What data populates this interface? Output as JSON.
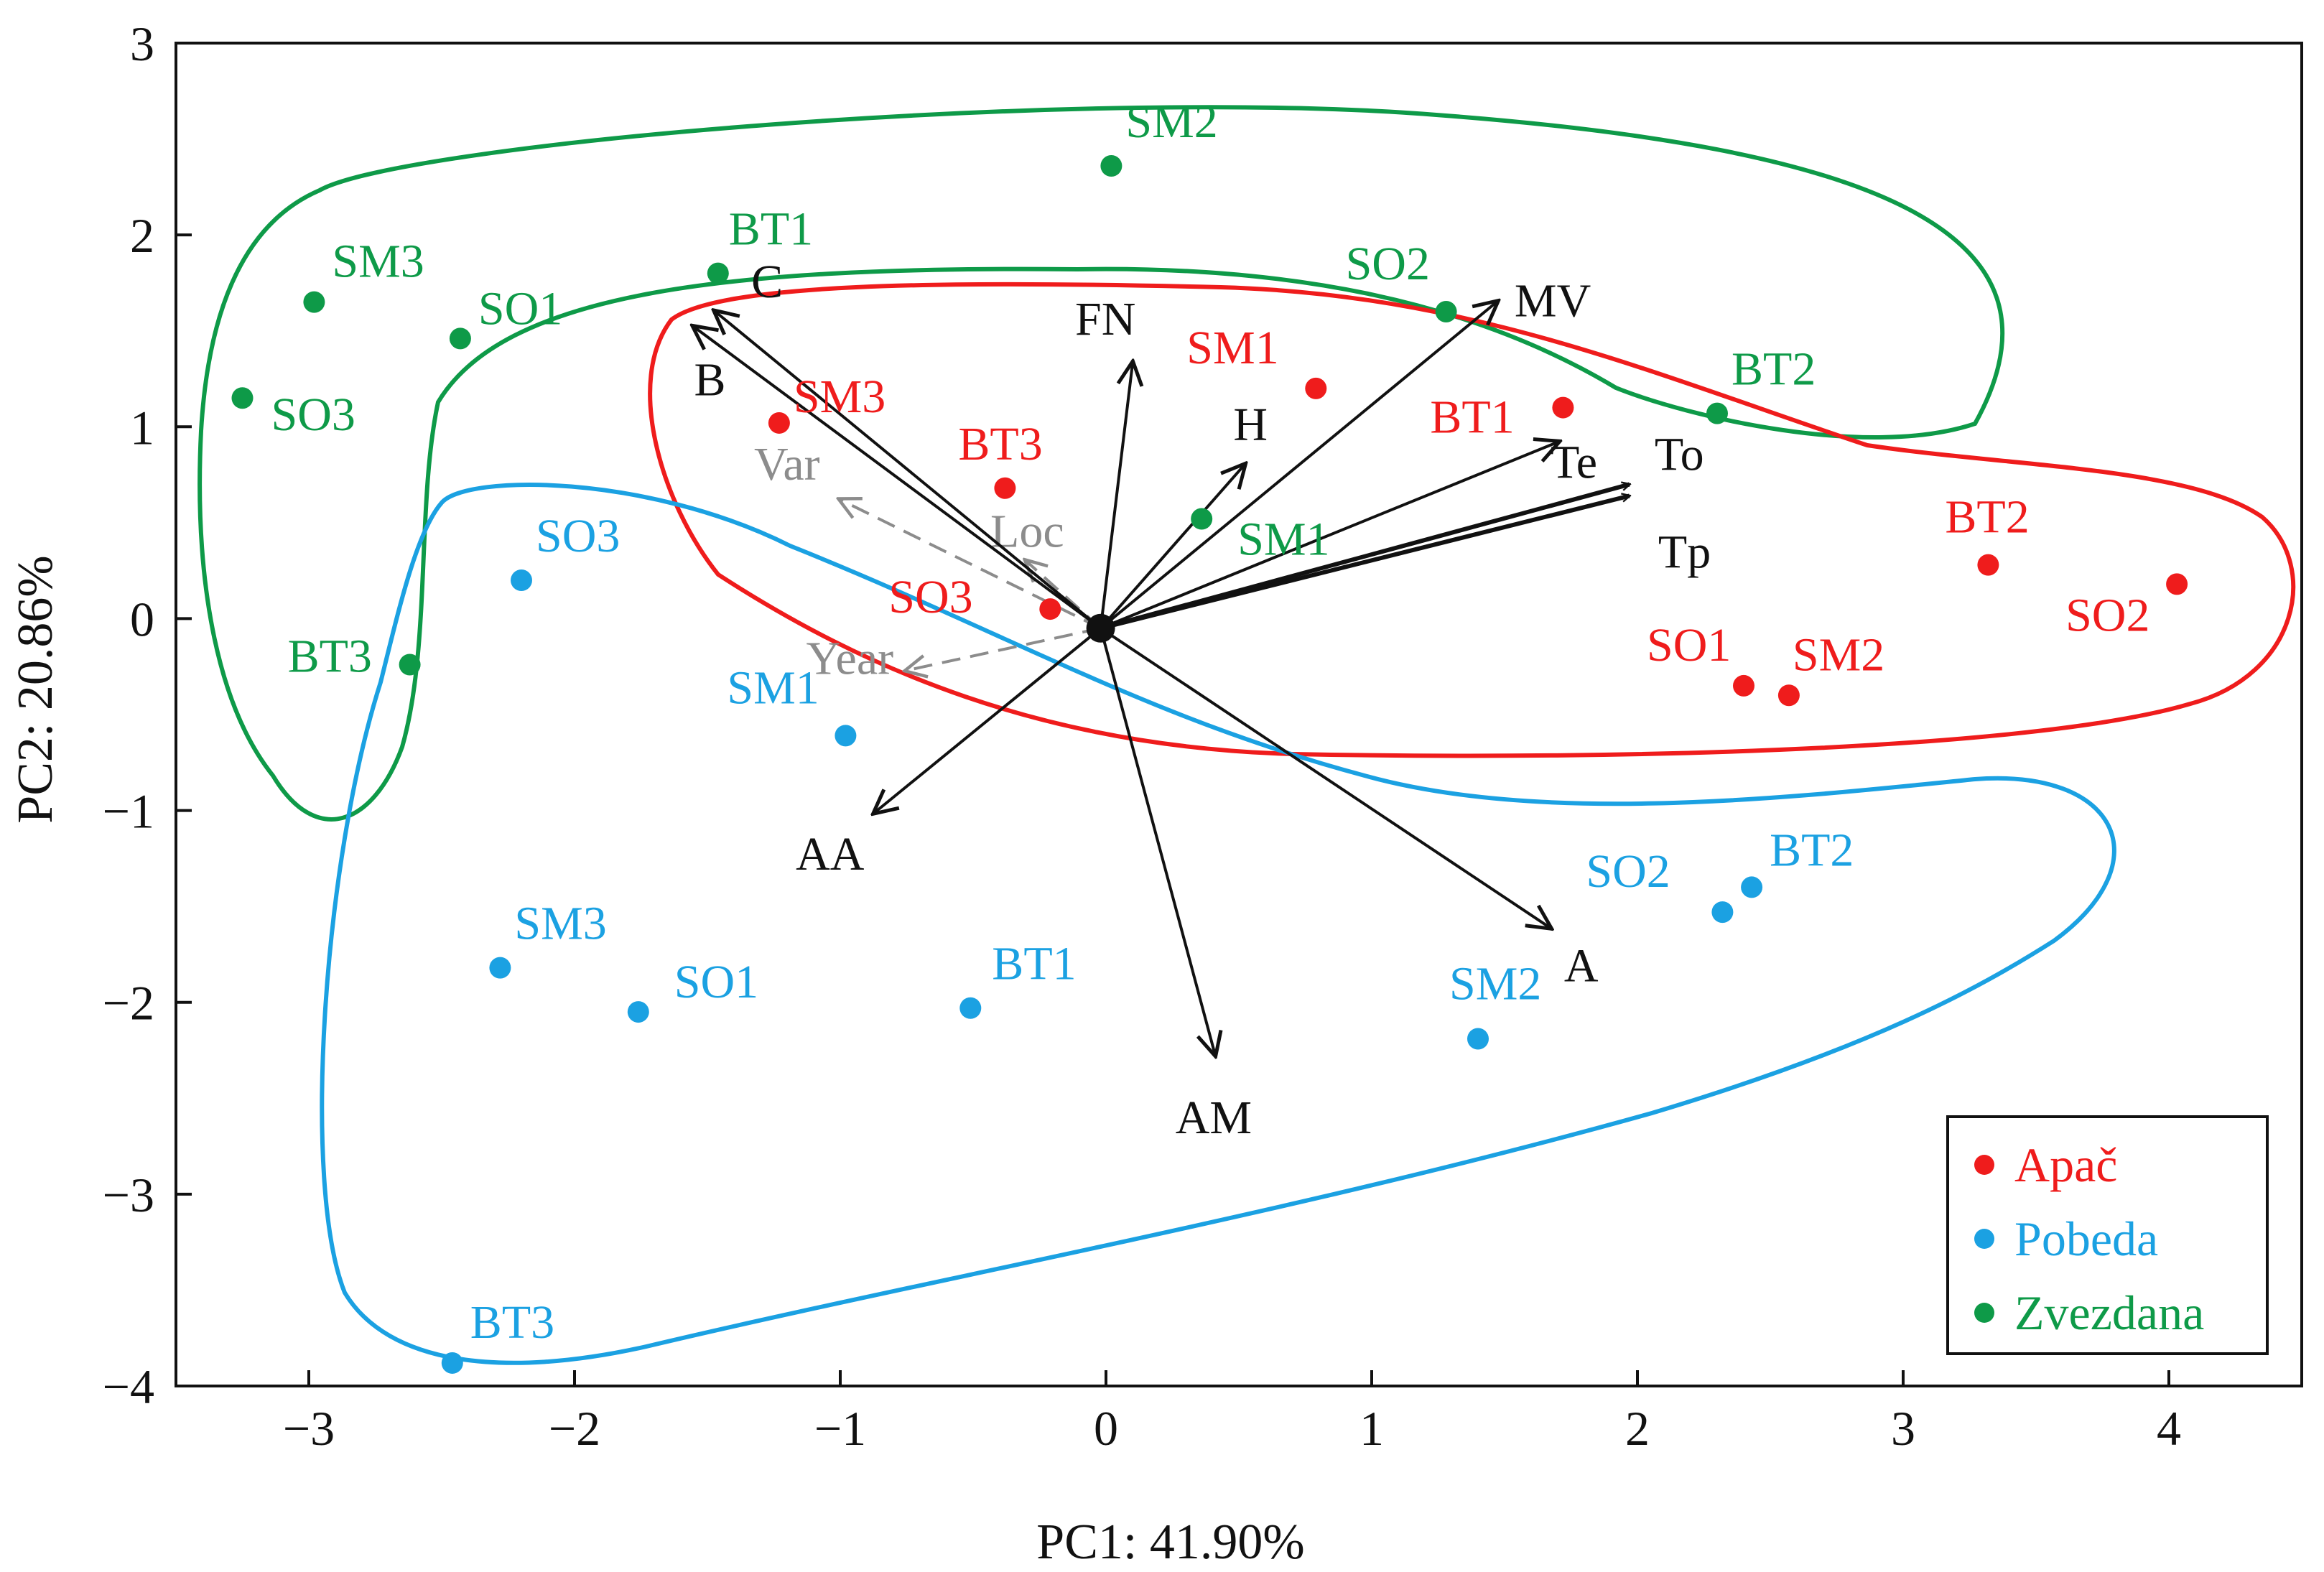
{
  "chart_data": {
    "type": "scatter",
    "title": "",
    "xlabel": "PC1: 41.90%",
    "ylabel": "PC2: 20.86%",
    "xlim": [
      -3.5,
      4.5
    ],
    "ylim": [
      -4,
      3
    ],
    "xticks": [
      -3,
      -2,
      -1,
      0,
      1,
      2,
      3,
      4
    ],
    "yticks": [
      -4,
      -3,
      -2,
      -1,
      0,
      1,
      2,
      3
    ],
    "grid": false,
    "legend_position": "bottom-right",
    "series": [
      {
        "name": "Apač",
        "color": "#ef1c1c",
        "points": [
          {
            "label": "SM3",
            "x": -1.23,
            "y": 1.02
          },
          {
            "label": "BT3",
            "x": -0.38,
            "y": 0.68
          },
          {
            "label": "SM1",
            "x": 0.79,
            "y": 1.2
          },
          {
            "label": "BT1",
            "x": 1.72,
            "y": 1.1
          },
          {
            "label": "SO3",
            "x": -0.21,
            "y": 0.05
          },
          {
            "label": "BT2",
            "x": 3.32,
            "y": 0.28
          },
          {
            "label": "SO2",
            "x": 4.03,
            "y": 0.18
          },
          {
            "label": "SO1",
            "x": 2.4,
            "y": -0.35
          },
          {
            "label": "SM2",
            "x": 2.57,
            "y": -0.4
          }
        ]
      },
      {
        "name": "Pobeda",
        "color": "#1ba1e2",
        "points": [
          {
            "label": "SO3",
            "x": -2.2,
            "y": 0.2
          },
          {
            "label": "SM1",
            "x": -0.98,
            "y": -0.61
          },
          {
            "label": "SM3",
            "x": -2.28,
            "y": -1.82
          },
          {
            "label": "SO1",
            "x": -1.76,
            "y": -2.05
          },
          {
            "label": "BT1",
            "x": -0.51,
            "y": -2.03
          },
          {
            "label": "SM2",
            "x": 1.4,
            "y": -2.19
          },
          {
            "label": "SO2",
            "x": 2.32,
            "y": -1.53
          },
          {
            "label": "BT2",
            "x": 2.43,
            "y": -1.4
          },
          {
            "label": "BT3",
            "x": -2.46,
            "y": -3.88
          }
        ]
      },
      {
        "name": "Zvezdana",
        "color": "#0e9a48",
        "points": [
          {
            "label": "SM2",
            "x": 0.02,
            "y": 2.36
          },
          {
            "label": "BT1",
            "x": -1.46,
            "y": 1.8
          },
          {
            "label": "SM3",
            "x": -2.98,
            "y": 1.65
          },
          {
            "label": "SO1",
            "x": -2.43,
            "y": 1.46
          },
          {
            "label": "SO3",
            "x": -3.25,
            "y": 1.15
          },
          {
            "label": "SO2",
            "x": 1.28,
            "y": 1.6
          },
          {
            "label": "BT2",
            "x": 2.3,
            "y": 1.07
          },
          {
            "label": "SM1",
            "x": 0.36,
            "y": 0.52
          },
          {
            "label": "BT3",
            "x": -2.62,
            "y": -0.24
          }
        ]
      }
    ],
    "loadings": [
      {
        "label": "C",
        "x": -1.47,
        "y": 1.6
      },
      {
        "label": "B",
        "x": -1.55,
        "y": 1.52
      },
      {
        "label": "FN",
        "x": 0.1,
        "y": 1.33
      },
      {
        "label": "MV",
        "x": 1.47,
        "y": 1.65
      },
      {
        "label": "H",
        "x": 0.52,
        "y": 0.8
      },
      {
        "label": "Te",
        "x": 1.7,
        "y": 0.92
      },
      {
        "label": "To",
        "x": 1.97,
        "y": 0.7
      },
      {
        "label": "Tp",
        "x": 1.97,
        "y": 0.64
      },
      {
        "label": "AA",
        "x": -0.87,
        "y": -1.01
      },
      {
        "label": "AM",
        "x": 0.41,
        "y": -2.27
      },
      {
        "label": "A",
        "x": 1.67,
        "y": -1.61
      }
    ],
    "supplementary": [
      {
        "label": "Var",
        "x": -1.0,
        "y": 0.62
      },
      {
        "label": "Loc",
        "x": -0.3,
        "y": 0.3
      },
      {
        "label": "Year",
        "x": -0.75,
        "y": -0.27
      }
    ],
    "origin": {
      "x": -0.02,
      "y": -0.05
    }
  }
}
